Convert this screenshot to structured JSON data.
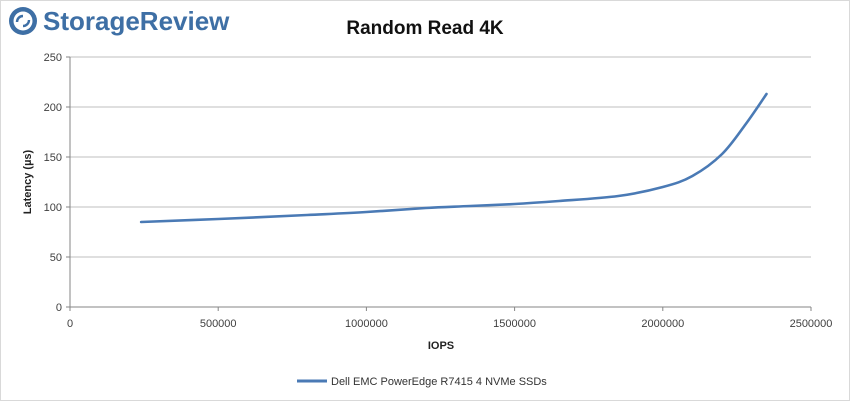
{
  "brand": {
    "name": "StorageReview",
    "logo_icon": "storagereview-logo-icon"
  },
  "chart_data": {
    "type": "line",
    "title": "Random Read 4K",
    "xlabel": "IOPS",
    "ylabel": "Latency (µs)",
    "xlim": [
      0,
      2500000
    ],
    "ylim": [
      0,
      250
    ],
    "xticks": [
      0,
      500000,
      1000000,
      1500000,
      2000000,
      2500000
    ],
    "yticks": [
      0,
      50,
      100,
      150,
      200,
      250
    ],
    "grid": true,
    "legend_position": "bottom",
    "series": [
      {
        "name": "Dell EMC PowerEdge R7415 4 NVMe SSDs",
        "color": "#4a7ab5",
        "x": [
          240000,
          500000,
          800000,
          1000000,
          1200000,
          1350000,
          1500000,
          1650000,
          1850000,
          2000000,
          2100000,
          2200000,
          2280000,
          2350000
        ],
        "y": [
          85,
          88,
          92,
          95,
          99,
          101,
          103,
          106,
          111,
          120,
          131,
          153,
          183,
          213
        ]
      }
    ]
  }
}
